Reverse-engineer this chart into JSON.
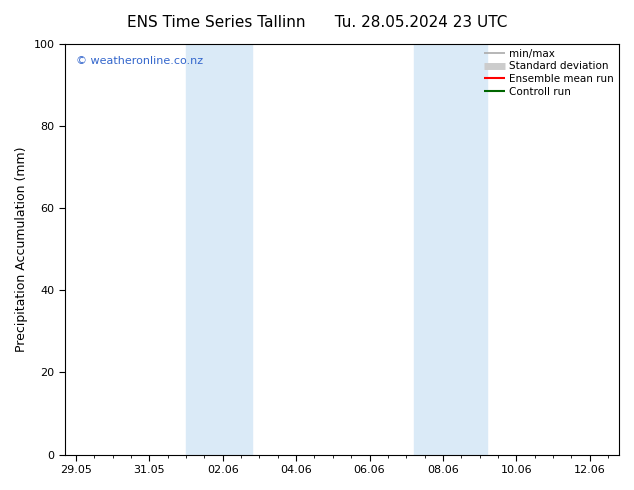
{
  "title_left": "ENS Time Series Tallinn",
  "title_right": "Tu. 28.05.2024 23 UTC",
  "ylabel": "Precipitation Accumulation (mm)",
  "ylim": [
    0,
    100
  ],
  "yticks": [
    0,
    20,
    40,
    60,
    80,
    100
  ],
  "xtick_labels": [
    "29.05",
    "31.05",
    "02.06",
    "04.06",
    "06.06",
    "08.06",
    "10.06",
    "12.06"
  ],
  "xtick_positions": [
    0,
    2,
    4,
    6,
    8,
    10,
    12,
    14
  ],
  "xlim": [
    -0.3,
    14.8
  ],
  "shaded_bands": [
    {
      "x_start": 3.0,
      "x_end": 4.8
    },
    {
      "x_start": 9.2,
      "x_end": 11.2
    }
  ],
  "shaded_color": "#daeaf7",
  "watermark_text": "© weatheronline.co.nz",
  "watermark_color": "#3366cc",
  "legend_items": [
    {
      "label": "min/max",
      "color": "#aaaaaa",
      "lw": 1.2
    },
    {
      "label": "Standard deviation",
      "color": "#cccccc",
      "lw": 5
    },
    {
      "label": "Ensemble mean run",
      "color": "#ff0000",
      "lw": 1.5
    },
    {
      "label": "Controll run",
      "color": "#006600",
      "lw": 1.5
    }
  ],
  "bg_color": "#ffffff",
  "title_fontsize": 11,
  "axis_label_fontsize": 9,
  "tick_fontsize": 8,
  "legend_fontsize": 7.5,
  "watermark_fontsize": 8
}
